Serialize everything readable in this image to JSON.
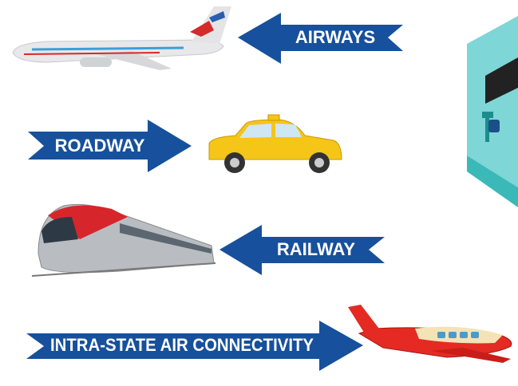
{
  "items": [
    {
      "label": "AIRWAYS"
    },
    {
      "label": "ROADWAY"
    },
    {
      "label": "RAILWAY"
    },
    {
      "label": "INTRA-STATE AIR CONNECTIVITY"
    }
  ]
}
